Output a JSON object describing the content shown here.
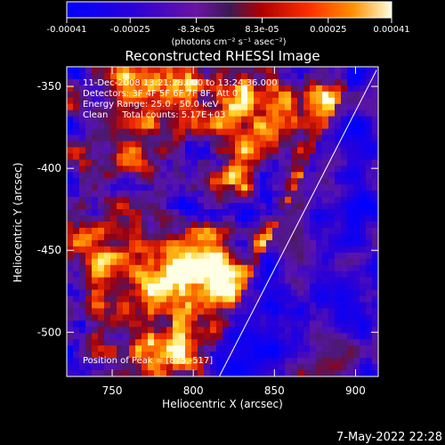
{
  "chart_data": {
    "type": "heatmap",
    "title": "Reconstructed RHESSI Image",
    "xlabel": "Heliocentric X (arcsec)",
    "ylabel": "Heliocentric Y (arcsec)",
    "xlim": [
      722,
      914
    ],
    "ylim": [
      -527,
      -338
    ],
    "x_ticks": [
      750,
      800,
      850,
      900
    ],
    "y_ticks": [
      -350,
      -400,
      -450,
      -500
    ],
    "colorbar": {
      "range": [
        -0.00041,
        0.00041
      ],
      "tick_labels": [
        "-0.00041",
        "-0.00025",
        "-8.3e-05",
        "8.3e-05",
        "0.00025",
        "0.00041"
      ],
      "units_label": "(photons cm⁻² s⁻¹ asec⁻²)"
    },
    "annotations": [
      "11-Dec-2008 13:21:28.000 to 13:24:36.000",
      "Detectors: 3F 4F 5F 6F 7F 8F, Att 0",
      "Energy Range: 25.0 - 50.0 keV",
      "Clean     Total counts: 5.17E+03"
    ],
    "peak_label": "Position of Peak = [875,-517]",
    "peak_position": [
      875,
      -517
    ],
    "limb_line": [
      [
        816,
        -527
      ],
      [
        913,
        -340
      ]
    ],
    "grid": false,
    "legend": "none"
  },
  "footer_timestamp": "7-May-2022 22:28"
}
